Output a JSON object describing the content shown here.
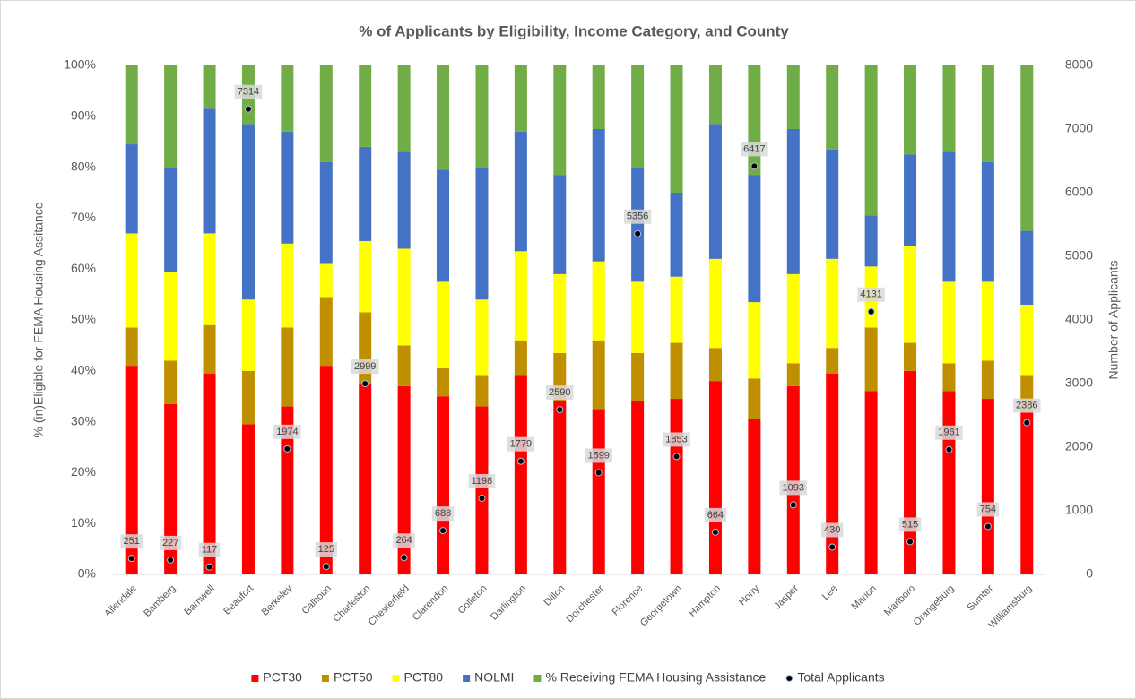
{
  "chart_data": {
    "type": "bar",
    "stacked": true,
    "title": "% of Applicants by Eligibility, Income Category, and County",
    "y_label": "% (in)Eligible for FEMA Housing Assitance",
    "y2_label": "Number of Applicants",
    "categories": [
      "Allendale",
      "Bamberg",
      "Barnwell",
      "Beaufort",
      "Berkeley",
      "Calhoun",
      "Charleston",
      "Chesterfield",
      "Clarendon",
      "Colleton",
      "Darlington",
      "Dillon",
      "Dorchester",
      "Florence",
      "Georgetown",
      "Hampton",
      "Horry",
      "Jasper",
      "Lee",
      "Marion",
      "Marlboro",
      "Orangeburg",
      "Sumter",
      "Williamsburg"
    ],
    "series": [
      {
        "name": "PCT30",
        "color": "#ff0000",
        "values": [
          41,
          33.5,
          39.5,
          29.5,
          33,
          41,
          37.5,
          37,
          35,
          33,
          39,
          34,
          32.5,
          34,
          34.5,
          38,
          30.5,
          37,
          39.5,
          36,
          40,
          36,
          34.5,
          32
        ]
      },
      {
        "name": "PCT50",
        "color": "#bf8f00",
        "values": [
          7.5,
          8.5,
          9.5,
          10.5,
          15.5,
          13.5,
          14,
          8,
          5.5,
          6,
          7,
          9.5,
          13.5,
          9.5,
          11,
          6.5,
          8,
          4.5,
          5,
          12.5,
          5.5,
          5.5,
          7.5,
          7
        ]
      },
      {
        "name": "PCT80",
        "color": "#ffff00",
        "values": [
          18.5,
          17.5,
          18,
          14,
          16.5,
          6.5,
          14,
          19,
          17,
          15,
          17.5,
          15.5,
          15.5,
          14,
          13,
          17.5,
          15,
          17.5,
          17.5,
          12,
          19,
          16,
          15.5,
          14
        ]
      },
      {
        "name": "NOLMI",
        "color": "#4472c4",
        "values": [
          17.5,
          20.5,
          24.5,
          34.5,
          22,
          20,
          18.5,
          19,
          22,
          26,
          23.5,
          19.5,
          26,
          22.5,
          16.5,
          26.5,
          25,
          28.5,
          21.5,
          10,
          18,
          25.5,
          23.5,
          14.5
        ]
      },
      {
        "name": "% Receiving FEMA Housing Assistance",
        "color": "#70ad47",
        "values": [
          15.5,
          20,
          8.5,
          11.5,
          13,
          19,
          16,
          17,
          20.5,
          20,
          13,
          21.5,
          12.5,
          20,
          25,
          11.5,
          21.5,
          12.5,
          16.5,
          29.5,
          17.5,
          17,
          19,
          32.5
        ]
      },
      {
        "name": "Total Applicants",
        "type": "scatter",
        "axis": "y2",
        "color": "#000000",
        "values": [
          251,
          227,
          117,
          7314,
          1974,
          125,
          2999,
          264,
          688,
          1198,
          1779,
          2590,
          1599,
          5356,
          1853,
          664,
          6417,
          1093,
          430,
          4131,
          515,
          1961,
          754,
          2386
        ]
      }
    ],
    "ylim": [
      0,
      100
    ],
    "yticks": [
      {
        "value": 0,
        "label": "0%"
      },
      {
        "value": 10,
        "label": "10%"
      },
      {
        "value": 20,
        "label": "20%"
      },
      {
        "value": 30,
        "label": "30%"
      },
      {
        "value": 40,
        "label": "40%"
      },
      {
        "value": 50,
        "label": "50%"
      },
      {
        "value": 60,
        "label": "60%"
      },
      {
        "value": 70,
        "label": "70%"
      },
      {
        "value": 80,
        "label": "80%"
      },
      {
        "value": 90,
        "label": "90%"
      },
      {
        "value": 100,
        "label": "100%"
      }
    ],
    "y2lim": [
      0,
      8000
    ],
    "y2ticks": [
      0,
      1000,
      2000,
      3000,
      4000,
      5000,
      6000,
      7000,
      8000
    ],
    "grid": false,
    "legend": "bottom"
  }
}
